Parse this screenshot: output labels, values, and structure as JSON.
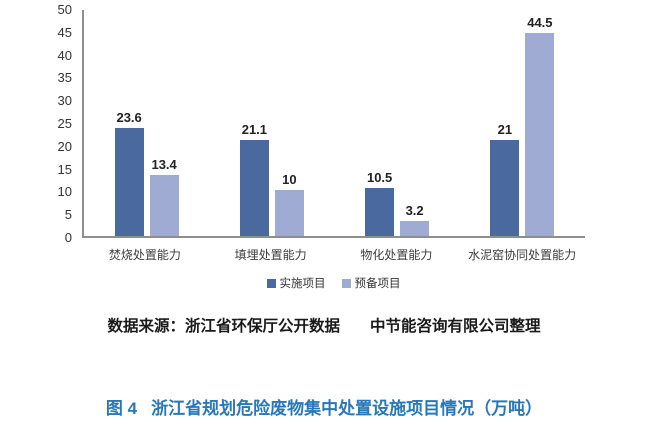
{
  "chart_data": {
    "type": "bar",
    "title": "",
    "xlabel": "",
    "ylabel": "",
    "categories": [
      "焚烧处置能力",
      "填埋处置能力",
      "物化处置能力",
      "水泥窑协同处置能力"
    ],
    "series": [
      {
        "name": "实施项目",
        "color": "#49699F",
        "values": [
          23.6,
          21.1,
          10.5,
          21
        ]
      },
      {
        "name": "预备项目",
        "color": "#A0ABD3",
        "values": [
          13.4,
          10,
          3.2,
          44.5
        ]
      }
    ],
    "ylim": [
      0,
      50
    ],
    "ytick_step": 5,
    "grid": false,
    "legend_position": "bottom",
    "data_labels": true
  },
  "source_note": {
    "part1": "数据来源：浙江省环保厅公开数据",
    "part2": "中节能咨询有限公司整理"
  },
  "caption": {
    "prefix": "图 4",
    "text": "浙江省规划危险废物集中处置设施项目情况（万吨）",
    "color": "#2878B8"
  }
}
